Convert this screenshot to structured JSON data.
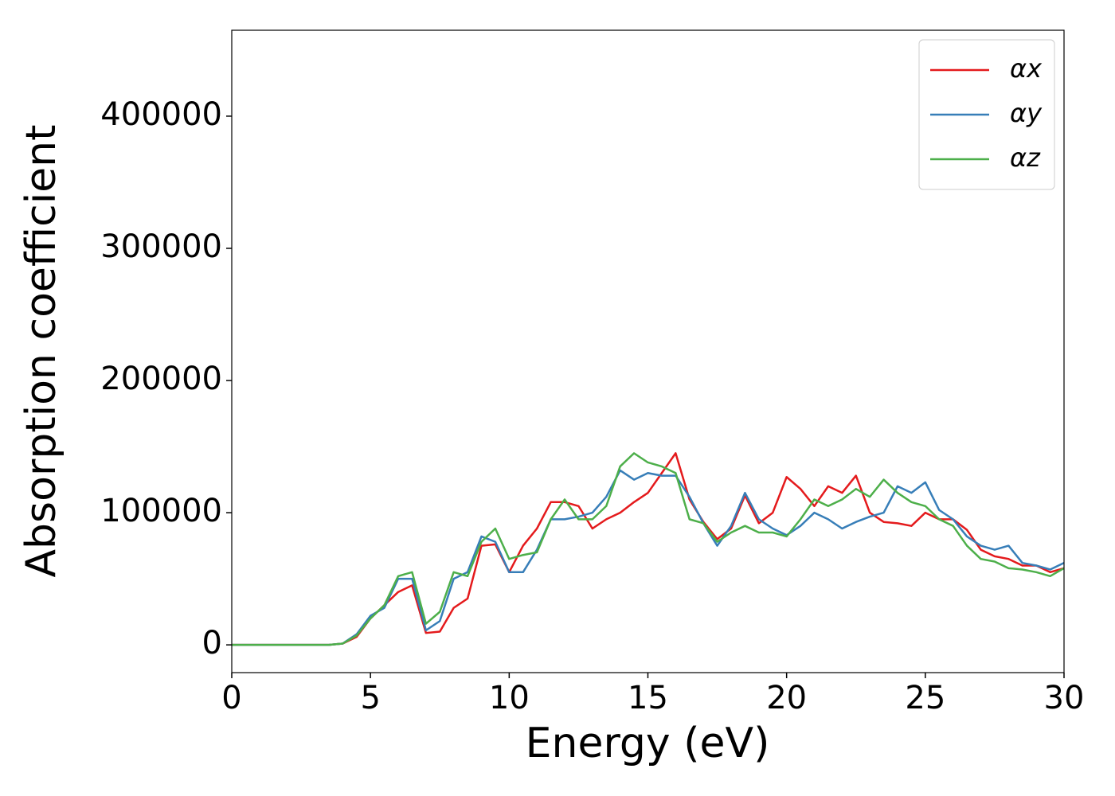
{
  "chart_data": {
    "type": "line",
    "xlabel": "Energy (eV)",
    "ylabel": "Absorption coefficient",
    "x": [
      0,
      0.5,
      1,
      1.5,
      2,
      2.5,
      3,
      3.5,
      4,
      4.5,
      5,
      5.5,
      6,
      6.5,
      7,
      7.5,
      8,
      8.5,
      9,
      9.5,
      10,
      10.5,
      11,
      11.5,
      12,
      12.5,
      13,
      13.5,
      14,
      14.5,
      15,
      15.5,
      16,
      16.5,
      17,
      17.5,
      18,
      18.5,
      19,
      19.5,
      20,
      20.5,
      21,
      21.5,
      22,
      22.5,
      23,
      23.5,
      24,
      24.5,
      25,
      25.5,
      26,
      26.5,
      27,
      27.5,
      28,
      28.5,
      29,
      29.5,
      30
    ],
    "series": [
      {
        "name": "αx",
        "color": "#e41a1c",
        "values": [
          0,
          0,
          0,
          0,
          0,
          0,
          0,
          0,
          1000,
          6000,
          20000,
          30000,
          40000,
          45000,
          9000,
          10000,
          28000,
          35000,
          75000,
          76000,
          55000,
          75000,
          88000,
          108000,
          108000,
          105000,
          88000,
          95000,
          100000,
          108000,
          115000,
          130000,
          145000,
          110000,
          93000,
          80000,
          88000,
          113000,
          92000,
          100000,
          127000,
          118000,
          105000,
          120000,
          115000,
          128000,
          100000,
          93000,
          92000,
          90000,
          100000,
          95000,
          95000,
          87000,
          72000,
          67000,
          65000,
          60000,
          60000,
          55000,
          58000
        ]
      },
      {
        "name": "αy",
        "color": "#377eb8",
        "values": [
          0,
          0,
          0,
          0,
          0,
          0,
          0,
          0,
          1000,
          8000,
          22000,
          28000,
          50000,
          50000,
          11000,
          18000,
          50000,
          55000,
          82000,
          78000,
          55000,
          55000,
          72000,
          95000,
          95000,
          97000,
          100000,
          112000,
          132000,
          125000,
          130000,
          128000,
          128000,
          112000,
          92000,
          75000,
          90000,
          115000,
          95000,
          88000,
          83000,
          90000,
          100000,
          95000,
          88000,
          93000,
          97000,
          100000,
          120000,
          115000,
          123000,
          102000,
          95000,
          82000,
          75000,
          72000,
          75000,
          62000,
          60000,
          57000,
          62000
        ]
      },
      {
        "name": "αz",
        "color": "#4daf4a",
        "values": [
          0,
          0,
          0,
          0,
          0,
          0,
          0,
          0,
          1000,
          7000,
          20000,
          30000,
          52000,
          55000,
          16000,
          25000,
          55000,
          52000,
          78000,
          88000,
          65000,
          68000,
          70000,
          95000,
          110000,
          95000,
          95000,
          105000,
          135000,
          145000,
          138000,
          135000,
          130000,
          95000,
          92000,
          78000,
          85000,
          90000,
          85000,
          85000,
          82000,
          95000,
          110000,
          105000,
          110000,
          118000,
          112000,
          125000,
          115000,
          108000,
          105000,
          95000,
          90000,
          75000,
          65000,
          63000,
          58000,
          57000,
          55000,
          52000,
          58000
        ]
      }
    ],
    "xlim": [
      0,
      30
    ],
    "xticks": [
      0,
      5,
      10,
      15,
      20,
      25,
      30
    ],
    "ylim": [
      -21000,
      465000
    ],
    "yticks": [
      0,
      100000,
      200000,
      300000,
      400000
    ],
    "legend": "upper right",
    "grid": false
  }
}
